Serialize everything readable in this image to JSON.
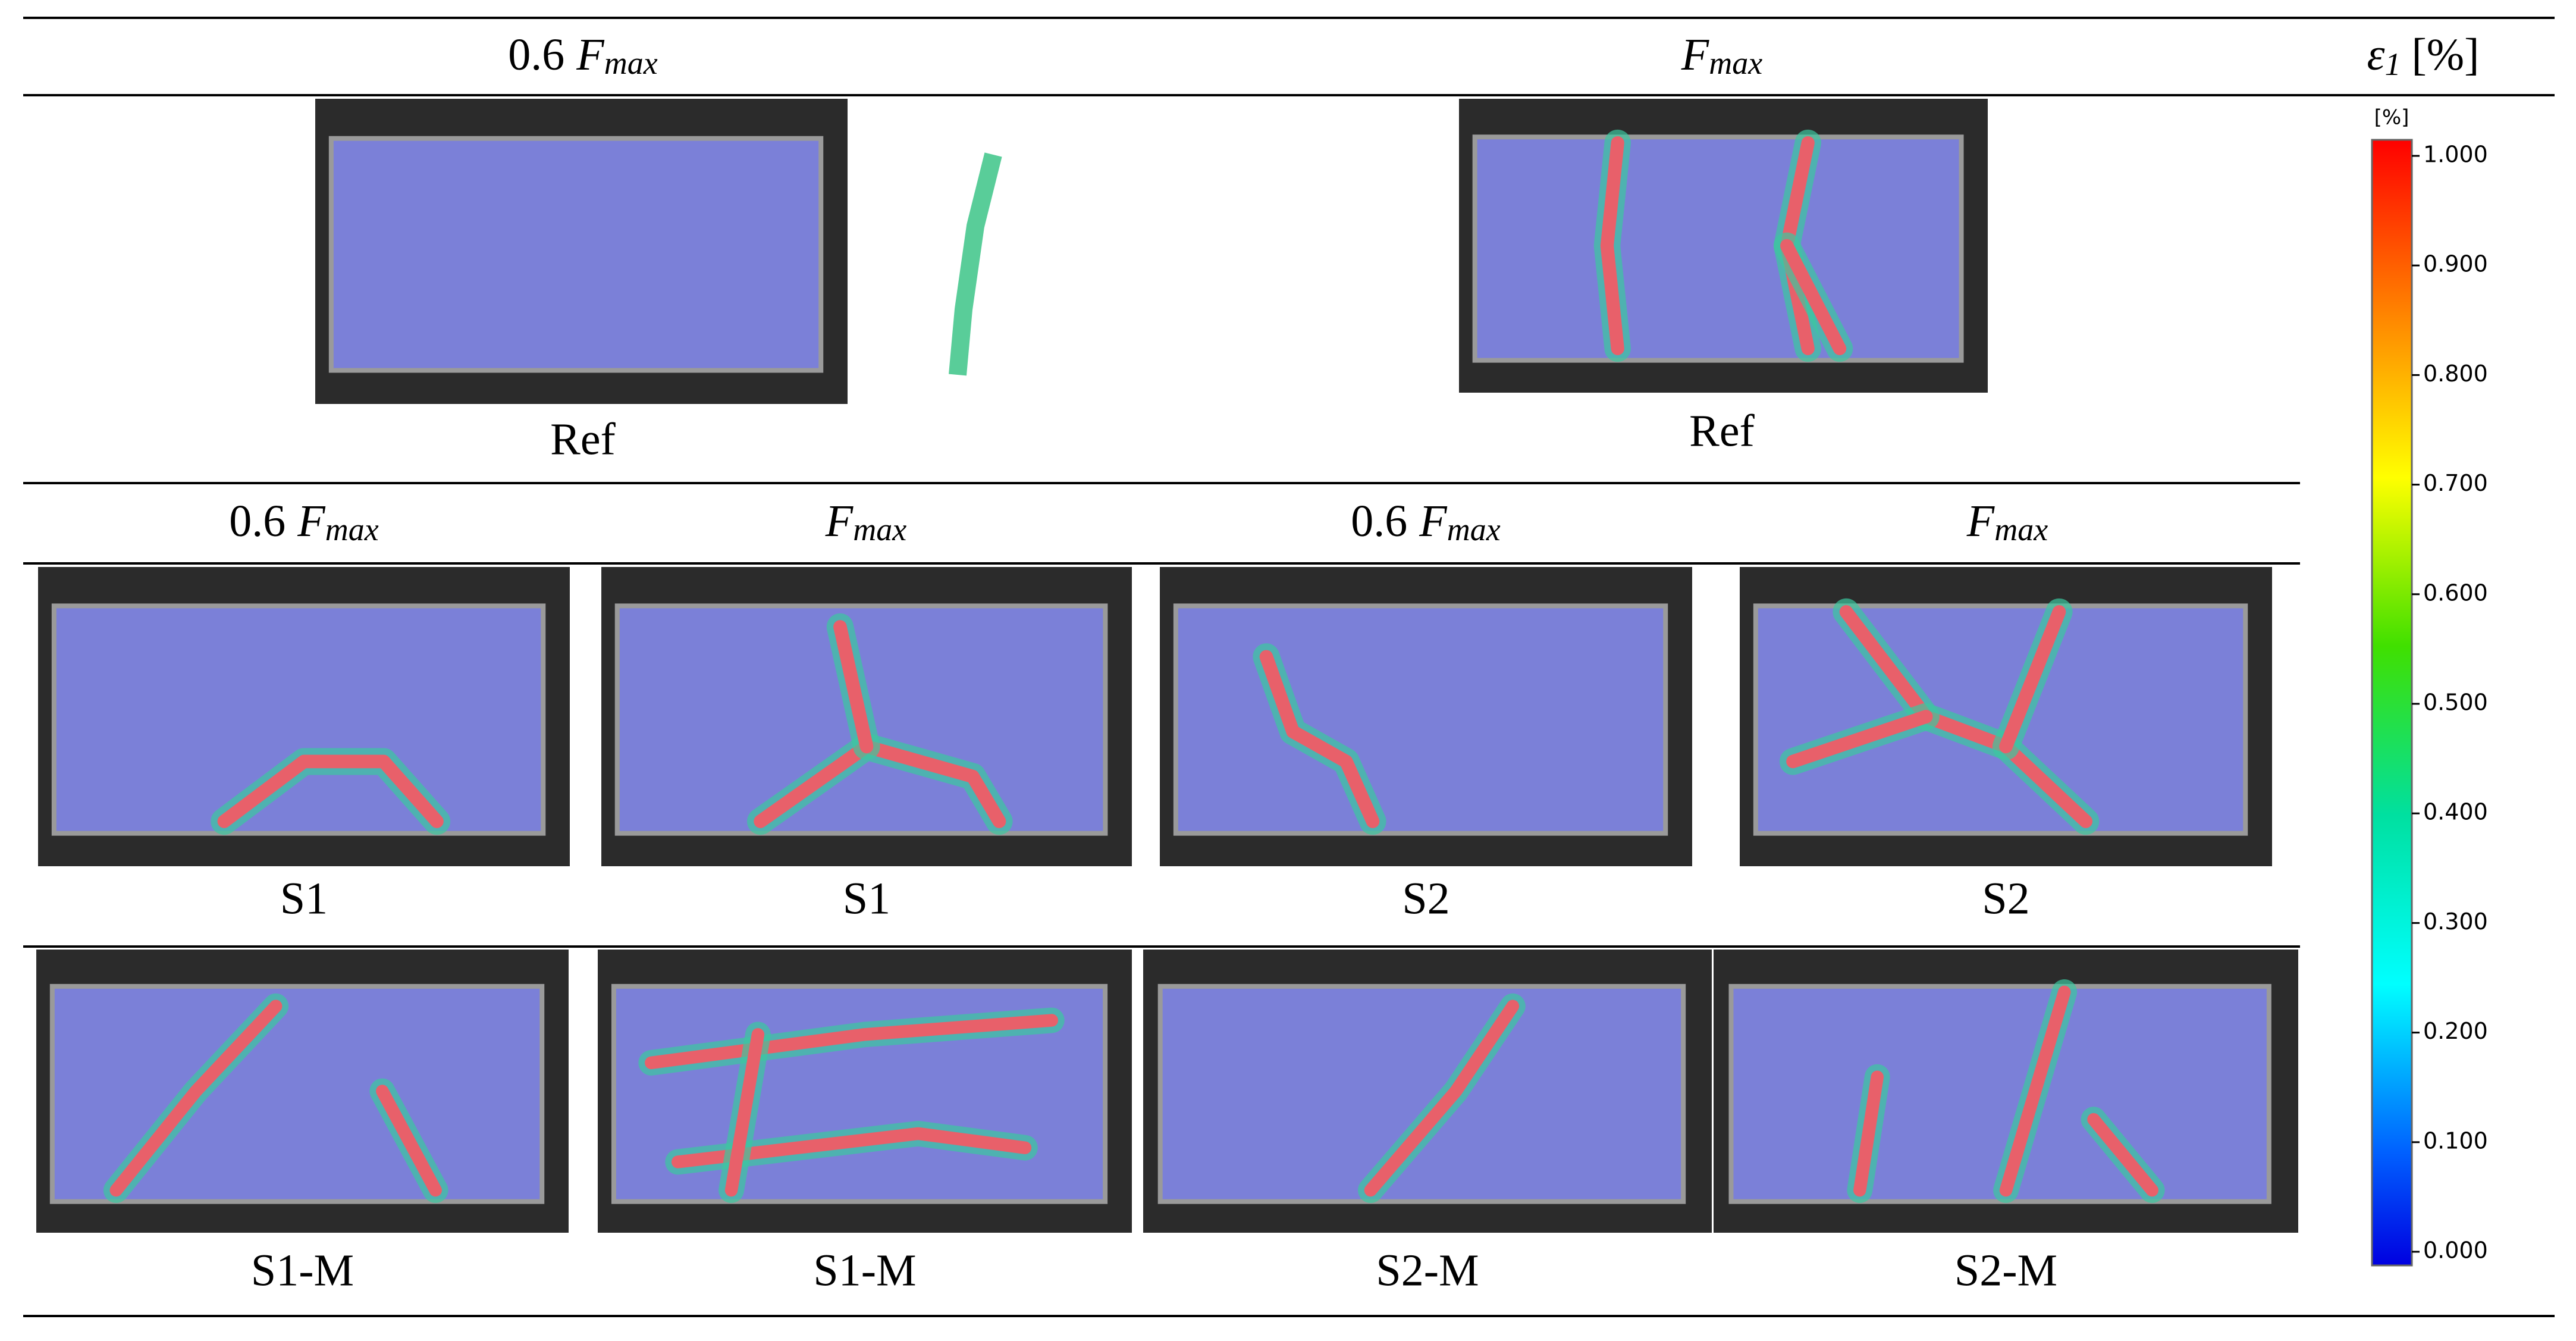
{
  "figure": {
    "top_headers": [
      {
        "factor": "0.6",
        "symbol": "F",
        "subscript": "max"
      },
      {
        "symbol": "F",
        "subscript": "max"
      }
    ],
    "ref_labels": [
      "Ref",
      "Ref"
    ],
    "row_headers": [
      {
        "factor": "0.6",
        "symbol": "F",
        "subscript": "max"
      },
      {
        "symbol": "F",
        "subscript": "max"
      },
      {
        "factor": "0.6",
        "symbol": "F",
        "subscript": "max"
      },
      {
        "symbol": "F",
        "subscript": "max"
      }
    ],
    "row2_labels": [
      "S1",
      "S1",
      "S2",
      "S2"
    ],
    "row3_labels": [
      "S1-M",
      "S1-M",
      "S2-M",
      "S2-M"
    ],
    "legend": {
      "symbol": "ε",
      "subscript": "1",
      "unit": "[%]",
      "colorbar_unit": "[%]",
      "ticks": [
        "1.000",
        "0.900",
        "0.800",
        "0.700",
        "0.600",
        "0.500",
        "0.400",
        "0.300",
        "0.200",
        "0.100",
        "0.000"
      ]
    }
  }
}
